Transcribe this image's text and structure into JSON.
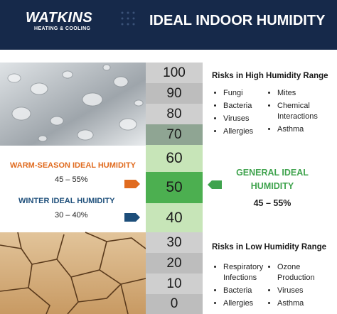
{
  "header": {
    "logo": {
      "name": "WATKINS",
      "tagline": "HEATING & COOLING"
    },
    "title": "IDEAL INDOOR HUMIDITY"
  },
  "scale": [
    "100",
    "90",
    "80",
    "70",
    "60",
    "50",
    "40",
    "30",
    "20",
    "10",
    "0"
  ],
  "warm_season": {
    "label": "WARM-SEASON IDEAL HUMIDITY",
    "range": "45 – 55%"
  },
  "winter": {
    "label": "WINTER IDEAL HUMIDITY",
    "range": "30 – 40%"
  },
  "general": {
    "label_lines": [
      "GENERAL IDEAL",
      "HUMIDITY"
    ],
    "range": "45 – 55%"
  },
  "high_risks": {
    "title": "Risks in High Humidity Range",
    "columns": [
      [
        "Fungi",
        "Bacteria",
        "Viruses",
        "Allergies"
      ],
      [
        "Mites",
        "Chemical Interactions",
        "Asthma"
      ]
    ]
  },
  "low_risks": {
    "title": "Risks in Low Humidity Range",
    "columns": [
      [
        "Respiratory Infections",
        "Bacteria",
        "Allergies"
      ],
      [
        "Ozone Production",
        "Viruses",
        "Asthma"
      ]
    ]
  }
}
